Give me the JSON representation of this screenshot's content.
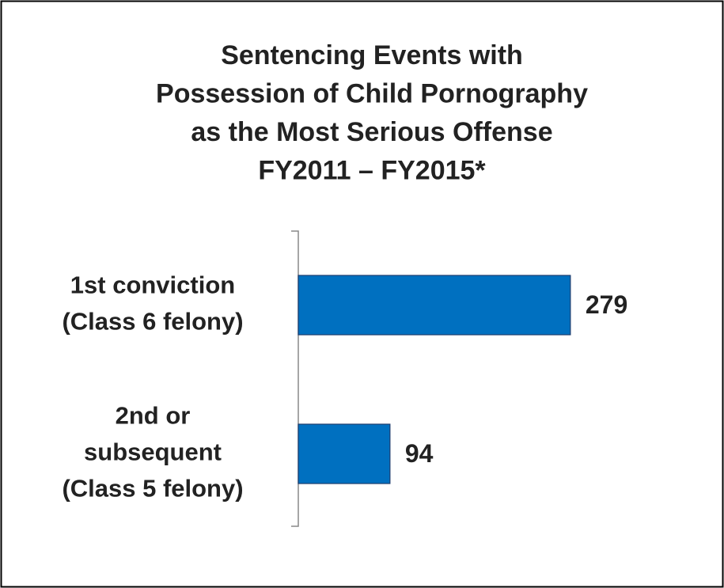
{
  "chart_data": {
    "type": "barh",
    "title": [
      "Sentencing Events with",
      "Possession of Child Pornography",
      "as the Most Serious Offense",
      "FY2011 – FY2015*"
    ],
    "categories": [
      [
        "1st conviction",
        "(Class 6 felony)"
      ],
      [
        "2nd or",
        "subsequent",
        "(Class 5 felony)"
      ]
    ],
    "values": [
      279,
      94
    ],
    "color": "#0070c0",
    "xlim": [
      0,
      400
    ]
  }
}
